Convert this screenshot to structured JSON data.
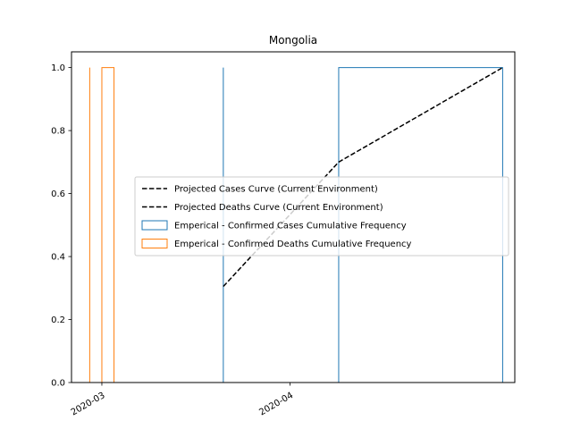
{
  "chart_data": {
    "type": "histogram",
    "title": "Mongolia",
    "xlabel": "",
    "ylabel": "",
    "x_axis": {
      "type": "date",
      "range": [
        "2020-02-25",
        "2020-05-08"
      ],
      "ticks": [
        "2020-03-01",
        "2020-04-01"
      ],
      "tick_labels": [
        "2020-03",
        "2020-04"
      ],
      "tick_rotation_deg": 30
    },
    "y_axis": {
      "range": [
        0.0,
        1.05
      ],
      "ticks": [
        0.0,
        0.2,
        0.4,
        0.6,
        0.8,
        1.0
      ],
      "tick_labels": [
        "0.0",
        "0.2",
        "0.4",
        "0.6",
        "0.8",
        "1.0"
      ]
    },
    "grid": false,
    "legend_placement": "center-right",
    "series": [
      {
        "name": "Projected Cases Curve (Current Environment)",
        "kind": "line",
        "color": "#000000",
        "dash": "dashed",
        "points": [
          {
            "x": "2020-03-21",
            "y": 0.305
          },
          {
            "x": "2020-04-09",
            "y": 0.7
          },
          {
            "x": "2020-05-06",
            "y": 1.0
          }
        ]
      },
      {
        "name": "Projected Deaths Curve (Current Environment)",
        "kind": "line",
        "color": "#000000",
        "dash": "dashed",
        "points": []
      },
      {
        "name": "Emperical - Confirmed Cases Cumulative Frequency",
        "kind": "step",
        "color": "#1f77b4",
        "bins": [
          {
            "start": "2020-03-21",
            "end": "2020-04-09",
            "value": 0.0
          },
          {
            "start": "2020-04-09",
            "end": "2020-05-06",
            "value": 1.0
          }
        ]
      },
      {
        "name": "Emperical - Confirmed Deaths Cumulative Frequency",
        "kind": "step",
        "color": "#ff7f0e",
        "bins": [
          {
            "start": "2020-02-28",
            "end": "2020-03-01",
            "value": 0.0
          },
          {
            "start": "2020-03-01",
            "end": "2020-03-03",
            "value": 1.0
          }
        ]
      }
    ]
  }
}
